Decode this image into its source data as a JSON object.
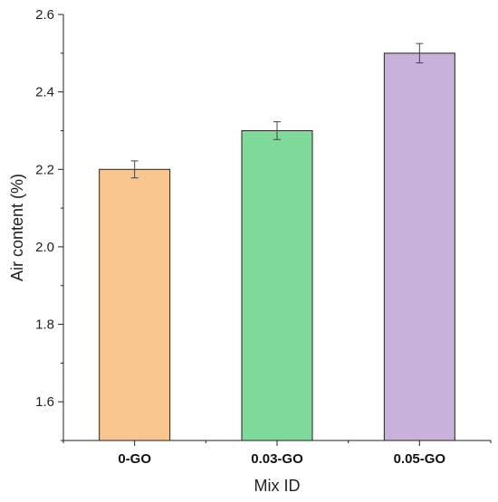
{
  "chart_data": {
    "type": "bar",
    "xlabel": "Mix ID",
    "ylabel": "Air content (%)",
    "ylim": [
      1.5,
      2.6
    ],
    "yticks": [
      "1.6",
      "1.8",
      "2.0",
      "2.2",
      "2.4",
      "2.6"
    ],
    "categories": [
      "0-GO",
      "0.03-GO",
      "0.05-GO"
    ],
    "values": [
      2.2,
      2.3,
      2.5
    ],
    "errors": [
      0.022,
      0.023,
      0.025
    ],
    "colors": [
      "#FAC68F",
      "#7FD998",
      "#C8B2D9"
    ],
    "grid": false,
    "legend": "none"
  }
}
